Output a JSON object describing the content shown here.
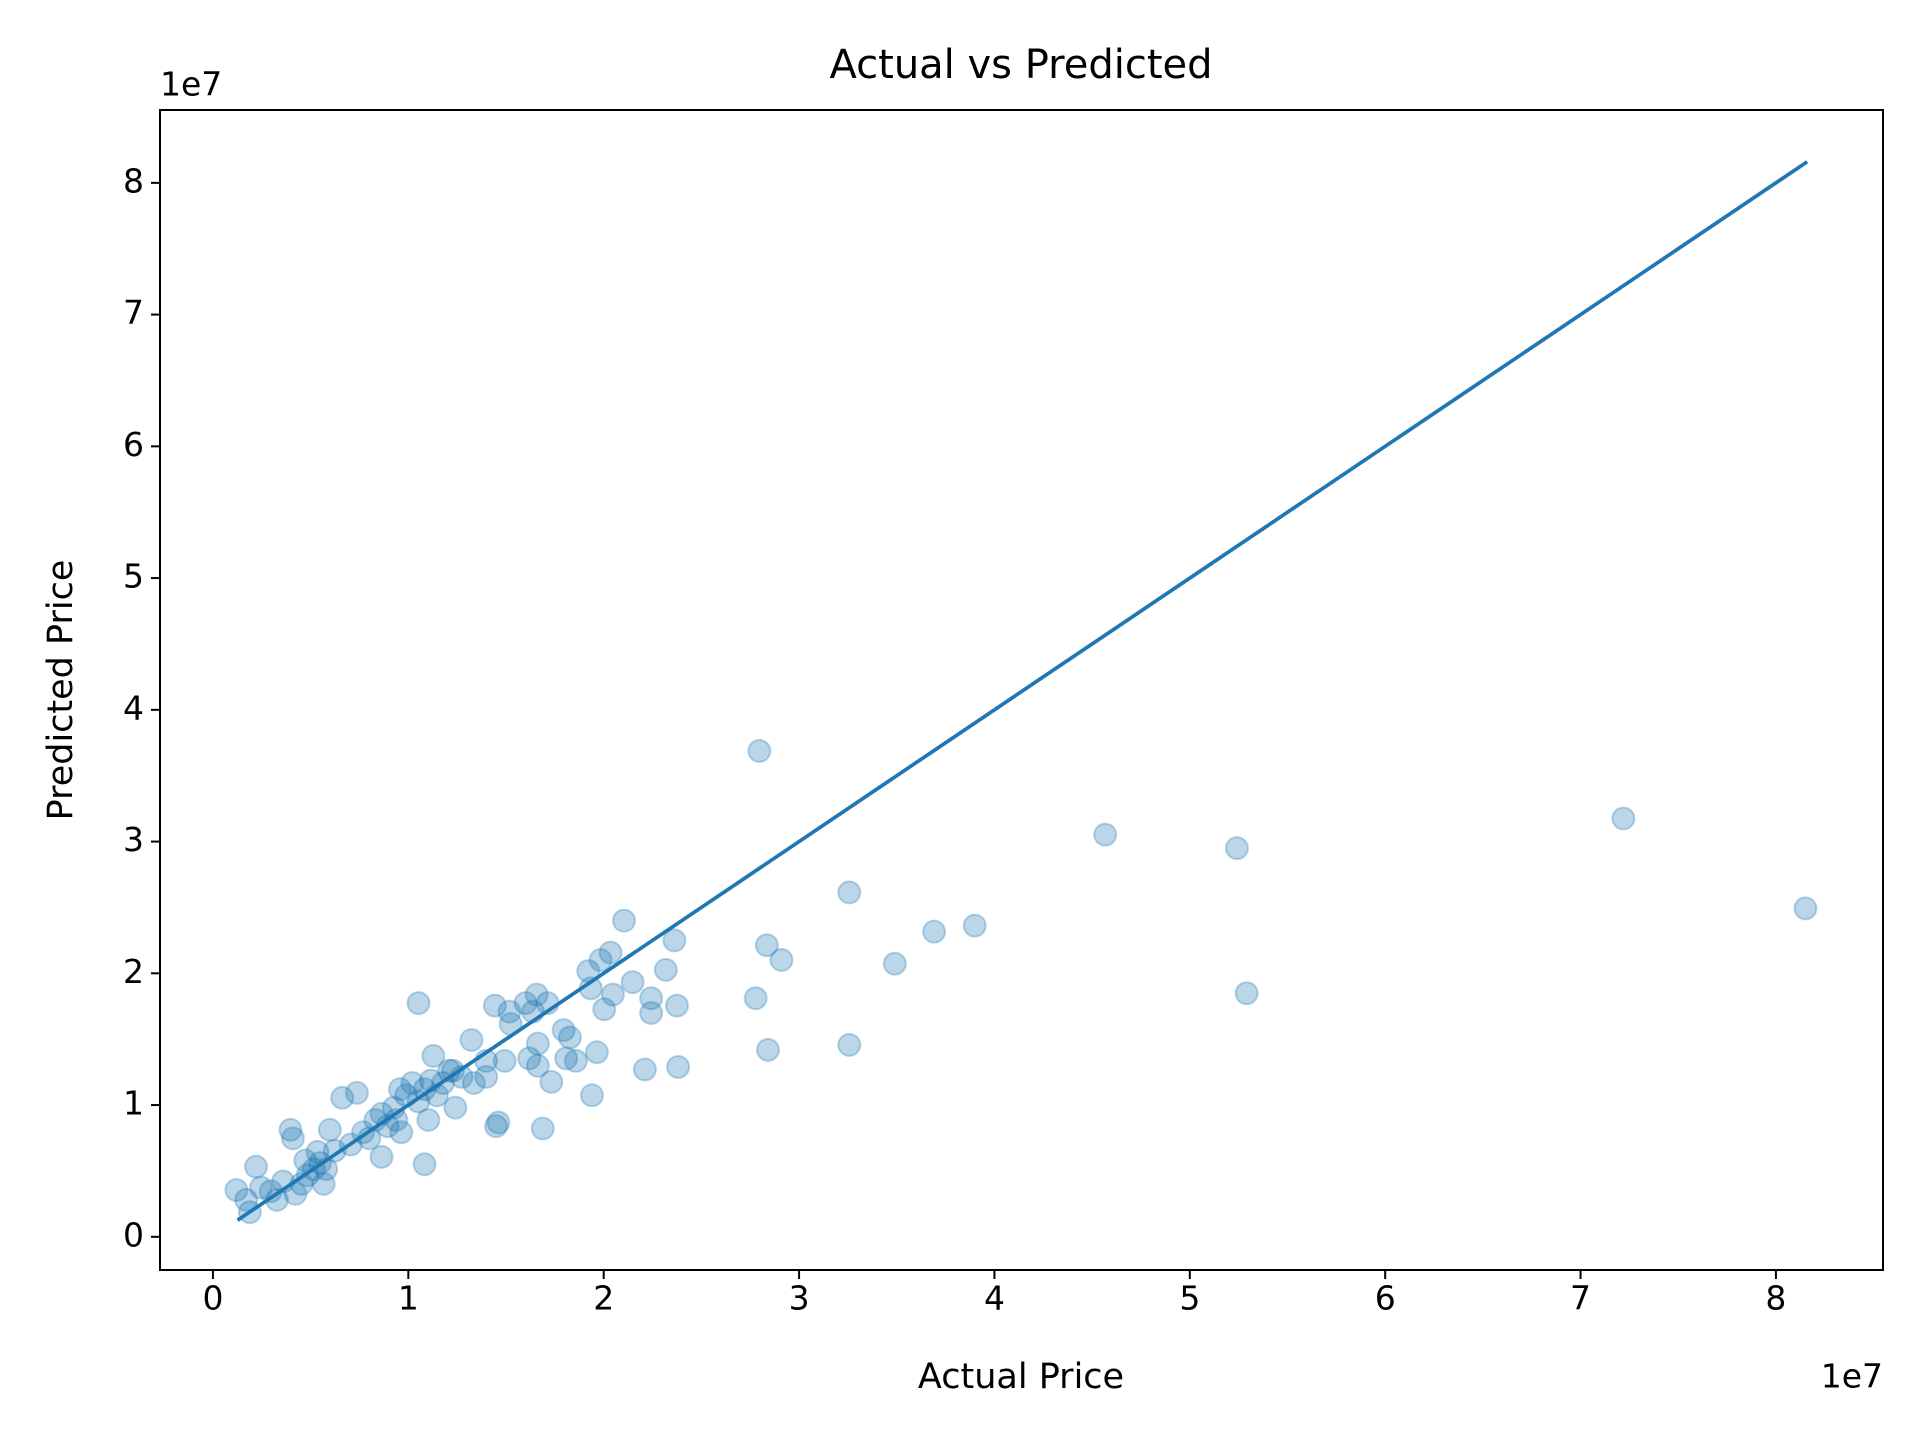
{
  "chart_data": {
    "type": "scatter",
    "title": "Actual vs Predicted",
    "xlabel": "Actual Price",
    "ylabel": "Predicted Price",
    "x_offset_label": "1e7",
    "y_offset_label": "1e7",
    "color": "#1f77b4",
    "x": [
      1200000,
      1890000,
      2205000,
      2457000,
      2961000,
      3276000,
      3591000,
      3968000,
      4094000,
      4535000,
      4850000,
      5165000,
      5480000,
      5795000,
      5984000,
      6236000,
      6614000,
      7055000,
      7370000,
      7685000,
      8000000,
      8315000,
      8630000,
      8945000,
      9260000,
      9575000,
      9890000,
      10205000,
      10520000,
      10835000,
      11150000,
      11465000,
      11780000,
      12283000,
      12724000,
      13354000,
      13984000,
      1701000,
      5669000,
      4220000,
      4724000,
      5354000,
      9386000,
      8630000,
      9638000,
      11024000,
      12409000,
      13984000,
      27970000,
      45670000,
      52410000,
      72190000,
      81510000,
      52910000,
      32570000,
      32570000,
      36910000,
      38990000,
      34900000,
      28350000,
      29100000,
      27780000,
      28410000,
      23620000,
      23180000,
      23750000,
      23810000,
      22110000,
      21040000,
      20350000,
      19840000,
      19210000,
      21480000,
      20470000,
      22430000,
      22430000,
      20030000,
      19340000,
      19650000,
      19400000,
      16880000,
      17320000,
      17130000,
      16570000,
      16000000,
      16380000,
      15180000,
      14430000,
      15240000,
      10520000,
      17950000,
      18270000,
      18080000,
      18580000,
      16630000,
      16190000,
      16630000,
      14610000,
      14490000,
      10830000,
      14930000,
      13230000,
      11280000,
      12090000
    ],
    "values": [
      3548000,
      1867000,
      5322000,
      3735000,
      3455000,
      2801000,
      4202000,
      8123000,
      7470000,
      4015000,
      4669000,
      5135000,
      5602000,
      5135000,
      8123000,
      6536000,
      10551000,
      7003000,
      10924000,
      7937000,
      7470000,
      8870000,
      9337000,
      8403000,
      9804000,
      11205000,
      10738000,
      11671000,
      10271000,
      11205000,
      11858000,
      10738000,
      11671000,
      12605000,
      12138000,
      11671000,
      13352000,
      2801000,
      4015000,
      3268000,
      5789000,
      6443000,
      8870000,
      6069000,
      7937000,
      8870000,
      9804000,
      12138000,
      36880000,
      30530000,
      29500000,
      31750000,
      24930000,
      18490000,
      26140000,
      14570000,
      23160000,
      23620000,
      20730000,
      22130000,
      21010000,
      18110000,
      14190000,
      22500000,
      20260000,
      17550000,
      12890000,
      12700000,
      24000000,
      21570000,
      21010000,
      20170000,
      19330000,
      18390000,
      18110000,
      16990000,
      17270000,
      18860000,
      14010000,
      10740000,
      8220000,
      11760000,
      17740000,
      18390000,
      17740000,
      17090000,
      17090000,
      17550000,
      16150000,
      17740000,
      15690000,
      15130000,
      13540000,
      13350000,
      14660000,
      13540000,
      12980000,
      8680000,
      8400000,
      5510000,
      13350000,
      14940000,
      13730000,
      12610000
    ],
    "line": {
      "x": [
        1260000,
        81600000
      ],
      "values": [
        1260000,
        81600000
      ]
    },
    "xlim": [
      -2710000,
      85480000
    ],
    "ylim": [
      -2520000,
      85530000
    ],
    "xticks": [
      {
        "value": 0,
        "label": "0"
      },
      {
        "value": 10000000,
        "label": "1"
      },
      {
        "value": 20000000,
        "label": "2"
      },
      {
        "value": 30000000,
        "label": "3"
      },
      {
        "value": 40000000,
        "label": "4"
      },
      {
        "value": 50000000,
        "label": "5"
      },
      {
        "value": 60000000,
        "label": "6"
      },
      {
        "value": 70000000,
        "label": "7"
      },
      {
        "value": 80000000,
        "label": "8"
      }
    ],
    "yticks": [
      {
        "value": 0,
        "label": "0"
      },
      {
        "value": 10000000,
        "label": "1"
      },
      {
        "value": 20000000,
        "label": "2"
      },
      {
        "value": 30000000,
        "label": "3"
      },
      {
        "value": 40000000,
        "label": "4"
      },
      {
        "value": 50000000,
        "label": "5"
      },
      {
        "value": 60000000,
        "label": "6"
      },
      {
        "value": 70000000,
        "label": "7"
      },
      {
        "value": 80000000,
        "label": "8"
      }
    ],
    "grid": false
  }
}
